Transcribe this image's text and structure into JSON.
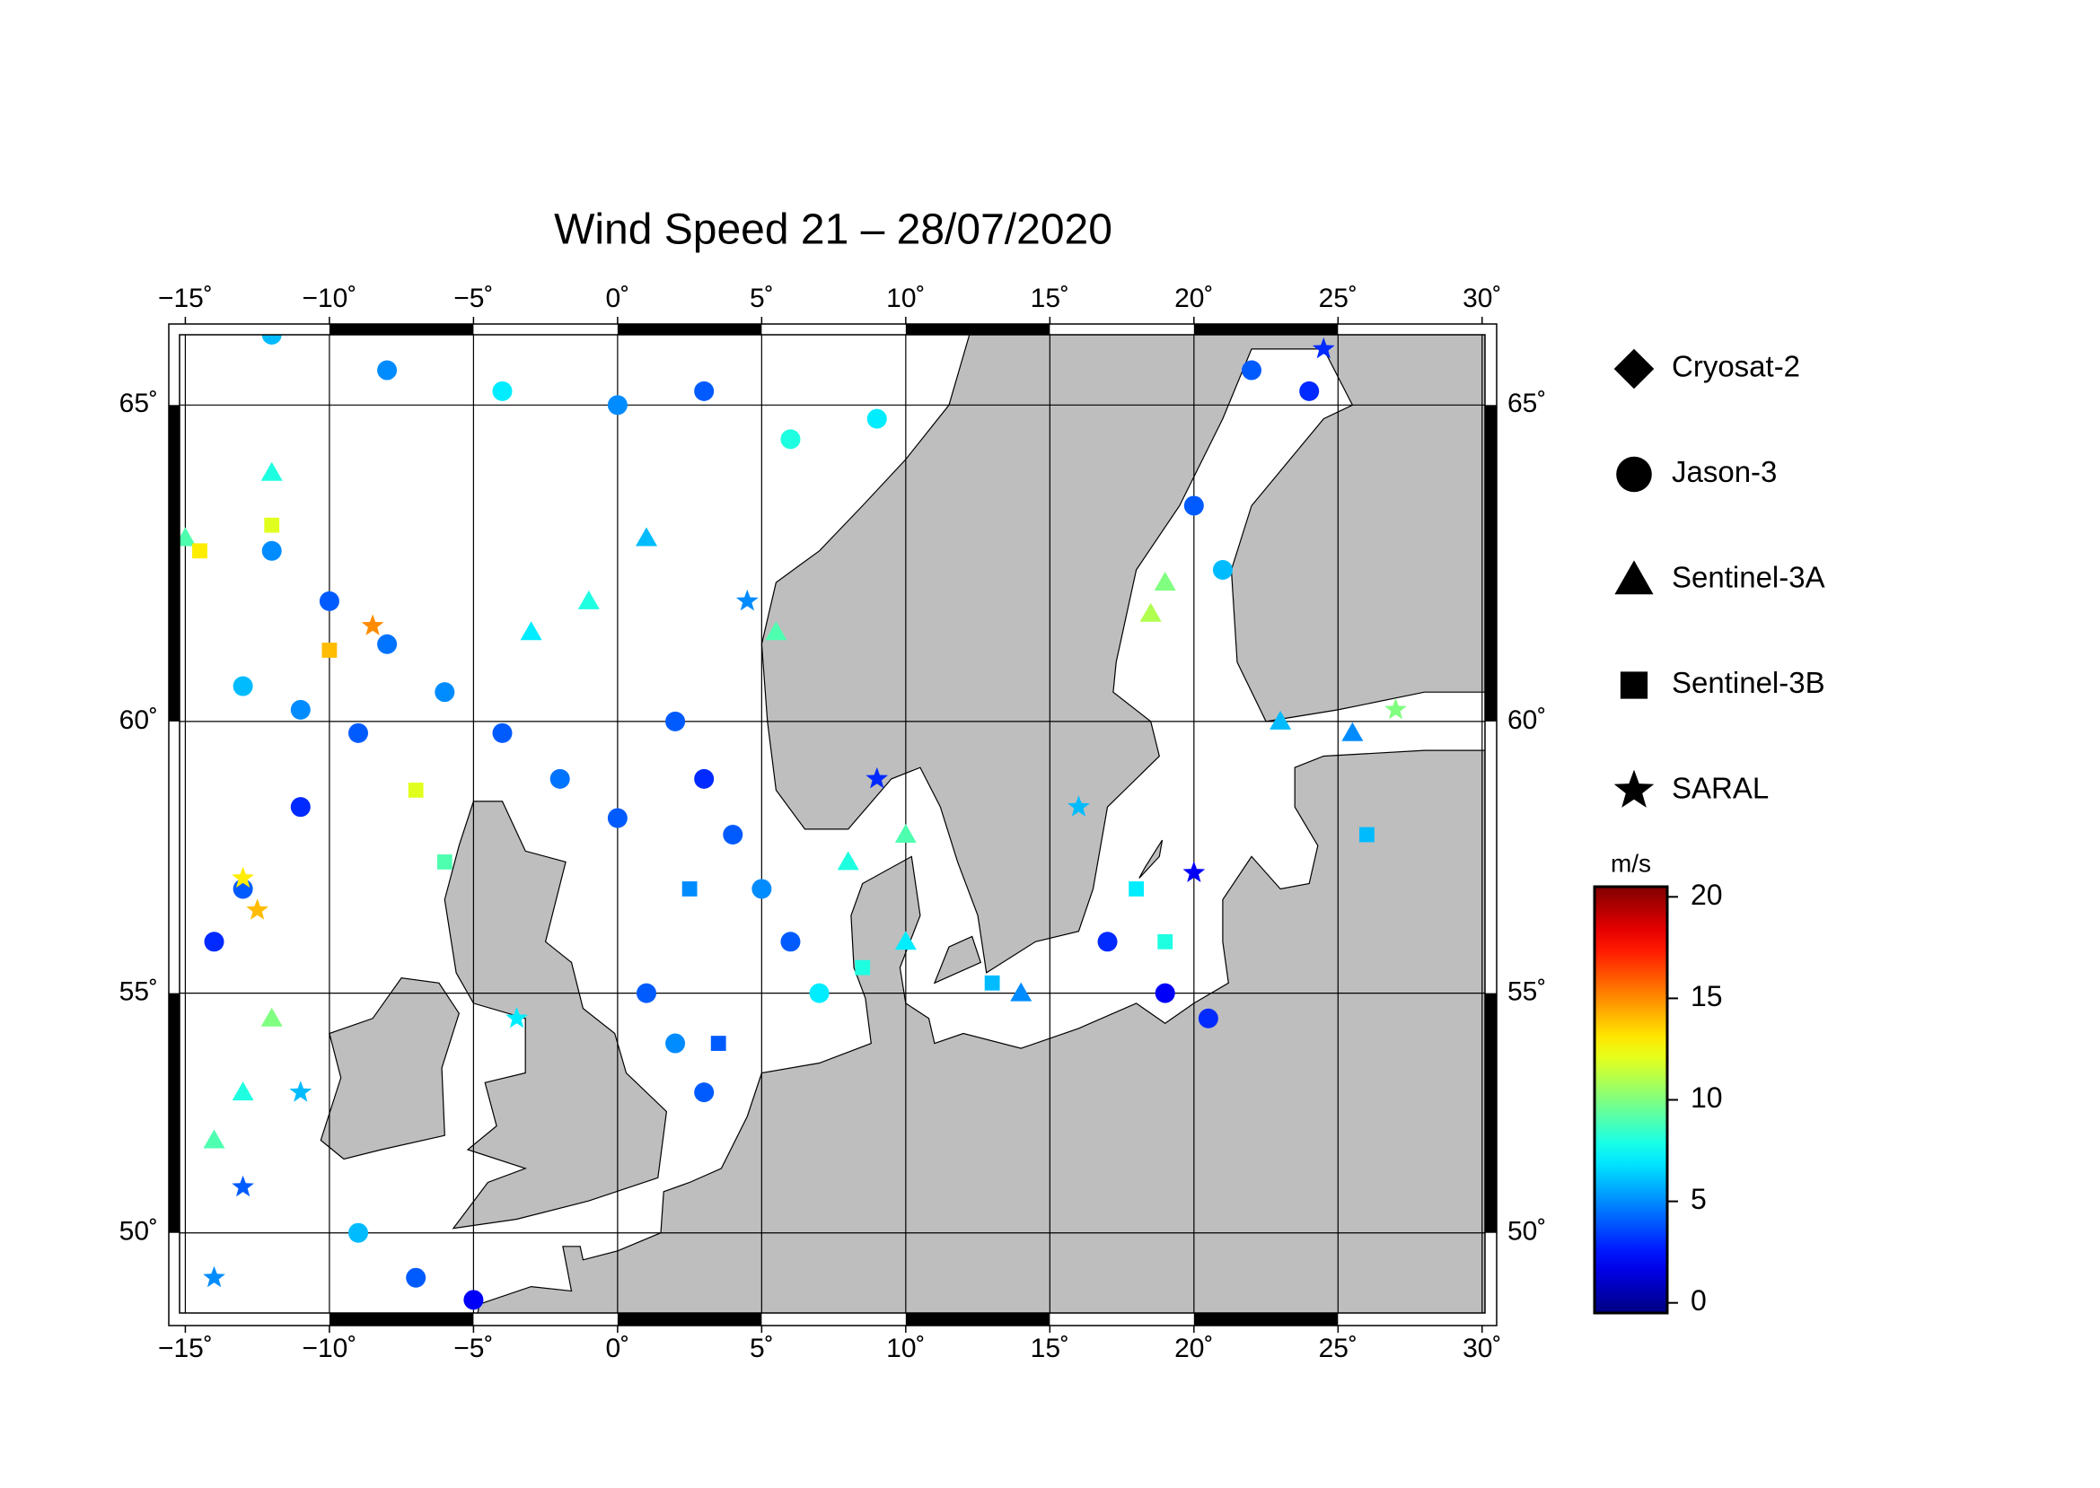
{
  "chart_data": {
    "type": "scatter",
    "title": "Wind Speed 21 – 28/07/2020",
    "projection": "mercator",
    "xlim": [
      -15.2,
      30.1
    ],
    "ylim": [
      48.2,
      66
    ],
    "xticks": [
      {
        "value": -15,
        "label": "−15˚"
      },
      {
        "value": -10,
        "label": "−10˚"
      },
      {
        "value": -5,
        "label": "−5˚"
      },
      {
        "value": 0,
        "label": "0˚"
      },
      {
        "value": 5,
        "label": "5˚"
      },
      {
        "value": 10,
        "label": "10˚"
      },
      {
        "value": 15,
        "label": "15˚"
      },
      {
        "value": 20,
        "label": "20˚"
      },
      {
        "value": 25,
        "label": "25˚"
      },
      {
        "value": 30,
        "label": "30˚"
      }
    ],
    "yticks": [
      {
        "value": 50,
        "label": "50˚"
      },
      {
        "value": 55,
        "label": "55˚"
      },
      {
        "value": 60,
        "label": "60˚"
      },
      {
        "value": 65,
        "label": "65˚"
      }
    ],
    "grid": true,
    "colormap": "jet",
    "clim": [
      -0.5,
      20.5
    ],
    "cticks": [
      0,
      5,
      10,
      15,
      20
    ],
    "clabel": "m/s",
    "series": [
      {
        "name": "Cryosat-2",
        "marker": "diamond",
        "x": [],
        "y": [],
        "values": []
      },
      {
        "name": "Jason-3",
        "marker": "circle",
        "x": [
          -12,
          -10,
          -8,
          -6,
          -4,
          -2,
          0,
          -13,
          -11,
          -9,
          -12,
          -8,
          -4,
          0,
          3,
          6,
          9,
          2,
          3,
          4,
          5,
          6,
          7,
          1,
          2,
          3,
          -14,
          -13,
          -11,
          22,
          24,
          20,
          21,
          17,
          19,
          20.5,
          -5,
          -7,
          -9
        ],
        "y": [
          62.8,
          62,
          61.3,
          60.5,
          59.8,
          59,
          58.3,
          60.6,
          60.2,
          59.8,
          66,
          65.5,
          65.2,
          65,
          65.2,
          64.5,
          64.8,
          60,
          59,
          58,
          57,
          56,
          55,
          55,
          54,
          53,
          56,
          57,
          58.5,
          65.5,
          65.2,
          63.5,
          62.5,
          56,
          55,
          54.5,
          48.5,
          49,
          50
        ],
        "values": [
          5,
          4,
          4.5,
          5,
          4,
          4.5,
          4,
          6,
          5,
          4,
          6,
          5,
          7,
          5,
          4,
          8,
          7,
          4,
          3,
          4,
          5,
          4,
          7,
          4,
          5,
          4,
          3,
          4,
          3,
          4,
          3,
          4,
          6,
          3,
          2,
          3,
          2,
          4,
          6
        ]
      },
      {
        "name": "Sentinel-3A",
        "marker": "triangle",
        "x": [
          -14,
          -13,
          -12,
          -3,
          -1,
          1,
          5.5,
          8,
          10,
          18.5,
          19,
          23,
          25.5,
          -15,
          -12,
          10,
          14
        ],
        "y": [
          52,
          53,
          54.5,
          61.5,
          62,
          63,
          61.5,
          57.5,
          58,
          61.8,
          62.3,
          60,
          59.8,
          63,
          64,
          56,
          55
        ],
        "values": [
          9,
          8,
          10,
          7,
          8,
          6,
          9,
          8,
          9,
          11,
          10,
          6,
          5,
          9,
          8,
          7,
          5
        ]
      },
      {
        "name": "Sentinel-3B",
        "marker": "square",
        "x": [
          -12,
          -14.5,
          -10,
          -7,
          -6,
          2.5,
          3.5,
          8.5,
          13,
          18,
          19,
          26
        ],
        "y": [
          63.2,
          62.8,
          61.2,
          58.8,
          57.5,
          57,
          54,
          55.5,
          55.2,
          57,
          56,
          58
        ],
        "values": [
          12,
          13,
          14,
          12,
          9,
          5,
          4,
          8,
          6,
          7,
          8,
          6
        ]
      },
      {
        "name": "SARAL",
        "marker": "star",
        "x": [
          -14,
          -13,
          -11,
          -13,
          -12.5,
          -8.5,
          -3.5,
          4.5,
          9,
          24.5,
          16,
          20,
          27
        ],
        "y": [
          49,
          51,
          53,
          57.2,
          56.6,
          61.6,
          54.5,
          62,
          59,
          65.8,
          58.5,
          57.3,
          60.2
        ],
        "values": [
          5,
          4,
          6,
          13,
          14,
          15,
          7,
          5,
          3,
          3,
          6,
          2,
          10
        ]
      }
    ]
  }
}
